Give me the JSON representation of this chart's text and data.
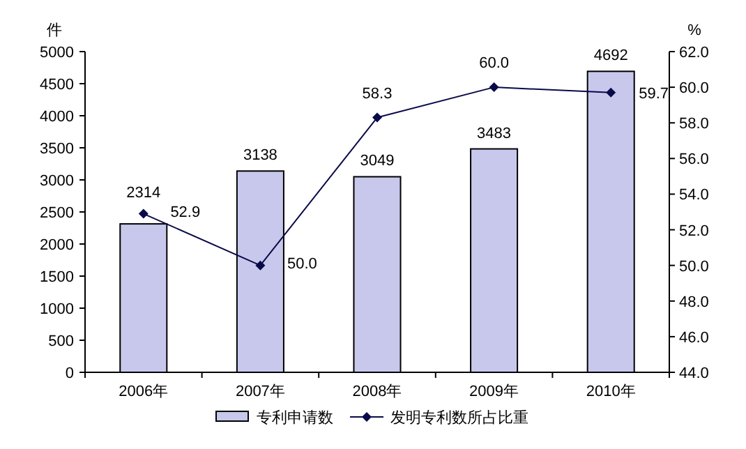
{
  "chart_data": {
    "type": "bar",
    "ylabel": "件",
    "y2label": "%",
    "categories": [
      "2006年",
      "2007年",
      "2008年",
      "2009年",
      "2010年"
    ],
    "series": [
      {
        "name": "专利申请数",
        "color": "#c8c8ec",
        "values": [
          2314,
          3138,
          3049,
          3483,
          4692
        ],
        "value_labels": [
          "2314",
          "3138",
          "3049",
          "3483",
          "4692"
        ]
      },
      {
        "name": "发明专利数所占比重",
        "type": "line",
        "axis": "y2",
        "color": "#0a0a4a",
        "marker": "diamond",
        "values": [
          52.9,
          50.0,
          58.3,
          60.0,
          59.7
        ],
        "value_labels": [
          "52.9",
          "50.0",
          "58.3",
          "60.0",
          "59.7"
        ]
      }
    ],
    "ylim": [
      0,
      5000
    ],
    "yticks": [
      0,
      500,
      1000,
      1500,
      2000,
      2500,
      3000,
      3500,
      4000,
      4500,
      5000
    ],
    "y2lim": [
      44,
      62
    ],
    "y2ticks": [
      {
        "value": 44,
        "label": "44.0"
      },
      {
        "value": 46,
        "label": "46.0"
      },
      {
        "value": 48,
        "label": "48.0"
      },
      {
        "value": 50,
        "label": "50.0"
      },
      {
        "value": 52,
        "label": "52.0"
      },
      {
        "value": 54,
        "label": "54.0"
      },
      {
        "value": 56,
        "label": "56.0"
      },
      {
        "value": 58,
        "label": "58.0"
      },
      {
        "value": 60,
        "label": "60.0"
      },
      {
        "value": 62,
        "label": "62.0"
      }
    ],
    "grid": false,
    "legend": "bottom"
  }
}
